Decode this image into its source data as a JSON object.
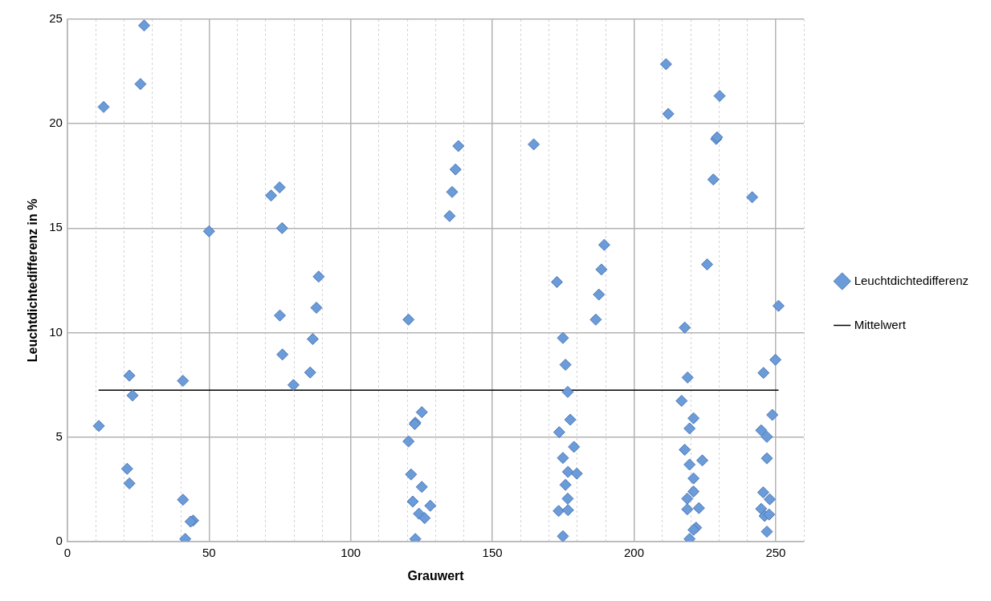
{
  "chart_data": {
    "type": "scatter",
    "xlabel": "Grauwert",
    "ylabel": "Leuchtdichtedifferenz in %",
    "xlim": [
      0,
      260
    ],
    "ylim": [
      0,
      25
    ],
    "xticks": [
      0,
      {
        "value": 10,
        "label": null
      },
      {
        "value": 20,
        "label": null
      },
      {
        "value": 30,
        "label": null
      },
      {
        "value": 40,
        "label": null
      },
      50,
      {
        "value": 60,
        "label": null
      },
      {
        "value": 70,
        "label": null
      },
      {
        "value": 80,
        "label": null
      },
      {
        "value": 90,
        "label": null
      },
      100,
      {
        "value": 110,
        "label": null
      },
      {
        "value": 120,
        "label": null
      },
      {
        "value": 130,
        "label": null
      },
      {
        "value": 140,
        "label": null
      },
      150,
      {
        "value": 160,
        "label": null
      },
      {
        "value": 170,
        "label": null
      },
      {
        "value": 180,
        "label": null
      },
      {
        "value": 190,
        "label": null
      },
      200,
      {
        "value": 210,
        "label": null
      },
      {
        "value": 220,
        "label": null
      },
      {
        "value": 230,
        "label": null
      },
      {
        "value": 240,
        "label": null
      },
      250,
      {
        "value": 260,
        "label": null
      }
    ],
    "yticks": [
      0,
      5,
      10,
      15,
      20,
      25
    ],
    "grid": true,
    "legend": "right",
    "series": [
      {
        "name": "Leuchtdichtedifferenz",
        "marker": "diamond",
        "color": "#6b9bd8",
        "x": [
          27.1,
          25.8,
          12.8,
          74.9,
          71.9,
          50,
          75.8,
          88.7,
          87.9,
          75,
          86.6,
          75.9,
          21.9,
          40.8,
          85.7,
          79.8,
          23,
          11.1,
          21.1,
          21.9,
          40.8,
          44.4,
          43.5,
          41.6,
          138,
          137,
          135.8,
          134.9,
          164.6,
          120.4,
          172.8,
          189.5,
          188.5,
          187.6,
          186.5,
          174.9,
          175.8,
          176.6,
          177.5,
          173.6,
          178.8,
          174.9,
          176.7,
          179.8,
          175.8,
          176.6,
          173.4,
          176.7,
          174.9,
          125.1,
          122.8,
          122.6,
          120.4,
          121.3,
          125.1,
          121.9,
          128.1,
          124.1,
          126.1,
          122.8,
          225.8,
          251,
          217.9,
          249.9,
          245.7,
          218.9,
          216.8,
          221,
          219.6,
          248.8,
          244.9,
          246.9,
          217.9,
          224.1,
          219.6,
          246.9,
          221,
          221,
          218.8,
          245.6,
          247.9,
          218.8,
          222.9,
          244.9,
          246.1,
          247.7,
          221.9,
          221,
          219.6,
          246.9,
          211.3,
          212.1,
          230.2,
          229,
          229.3,
          228,
          241.7
        ],
        "values": [
          24.7,
          21.9,
          20.8,
          16.95,
          16.56,
          14.85,
          15,
          12.68,
          11.19,
          10.82,
          9.69,
          8.95,
          7.94,
          7.69,
          8.09,
          7.49,
          6.99,
          5.53,
          3.48,
          2.78,
          2,
          1,
          0.95,
          0.12,
          18.93,
          17.81,
          16.73,
          15.58,
          19.01,
          10.62,
          12.42,
          14.2,
          13.02,
          11.82,
          10.62,
          9.74,
          8.46,
          7.16,
          5.83,
          5.23,
          4.53,
          4,
          3.33,
          3.25,
          2.71,
          2.05,
          1.46,
          1.5,
          0.25,
          6.19,
          5.69,
          5.62,
          4.79,
          3.21,
          2.61,
          1.91,
          1.71,
          1.33,
          1.12,
          0.12,
          13.26,
          11.28,
          10.24,
          8.7,
          8.07,
          7.85,
          6.73,
          5.9,
          5.41,
          6.06,
          5.32,
          5.01,
          4.39,
          3.88,
          3.68,
          3.98,
          3.02,
          2.39,
          2.05,
          2.35,
          2.02,
          1.54,
          1.6,
          1.56,
          1.22,
          1.29,
          0.66,
          0.56,
          0.12,
          0.47,
          22.85,
          20.47,
          21.33,
          19.27,
          19.35,
          17.33,
          16.48
        ]
      },
      {
        "name": "Mittelwert",
        "type": "line",
        "marker": "none",
        "line_style": "solid",
        "color": "#000000",
        "x": [
          11,
          251
        ],
        "values": [
          7.24,
          7.24
        ]
      }
    ]
  }
}
